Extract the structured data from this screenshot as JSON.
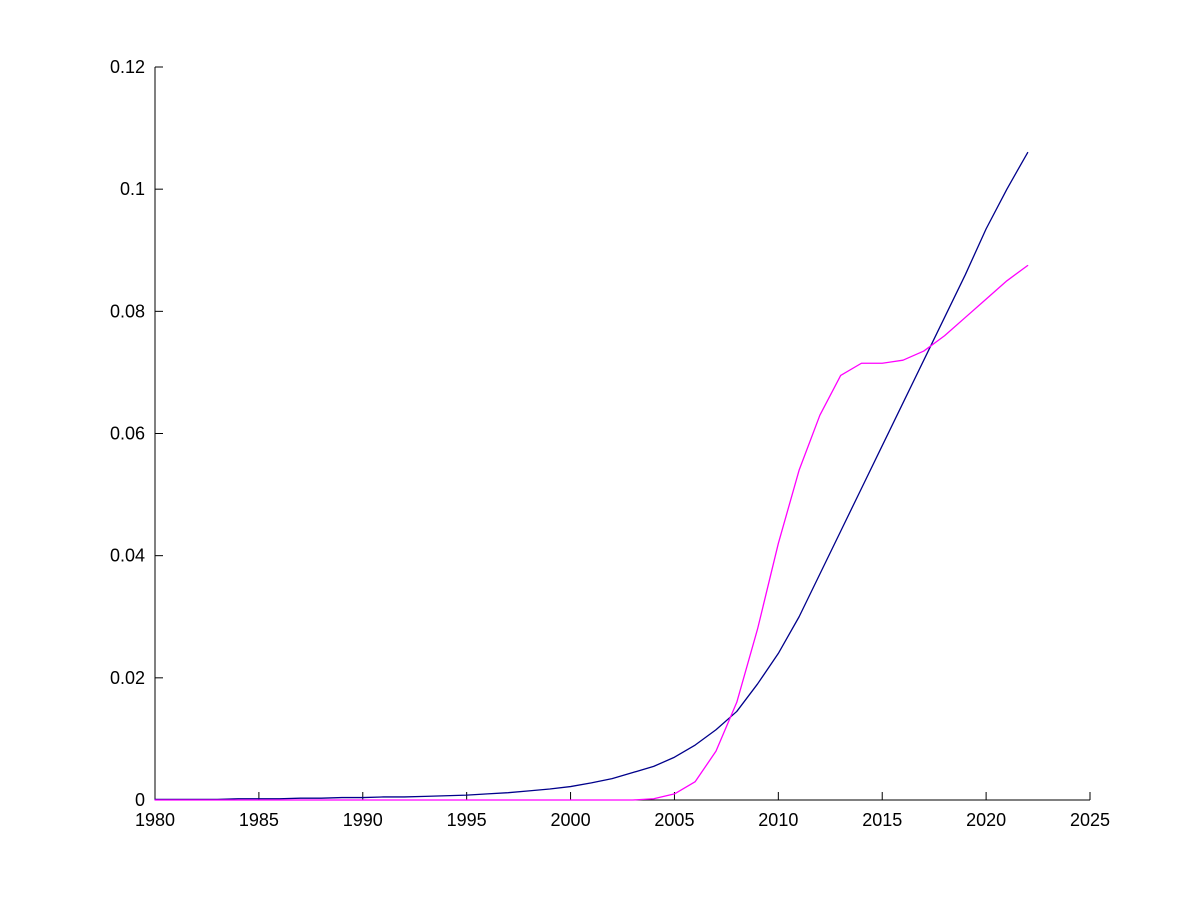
{
  "chart_data": {
    "type": "line",
    "title": "",
    "xlabel": "",
    "ylabel": "",
    "xlim": [
      1980,
      2025
    ],
    "ylim": [
      0,
      0.12
    ],
    "x_ticks": [
      1980,
      1985,
      1990,
      1995,
      2000,
      2005,
      2010,
      2015,
      2020,
      2025
    ],
    "x_tick_labels": [
      "1980",
      "1985",
      "1990",
      "1995",
      "2000",
      "2005",
      "2010",
      "2015",
      "2020",
      "2025"
    ],
    "y_ticks": [
      0,
      0.02,
      0.04,
      0.06,
      0.08,
      0.1,
      0.12
    ],
    "y_tick_labels": [
      "0",
      "0.02",
      "0.04",
      "0.06",
      "0.08",
      "0.1",
      "0.12"
    ],
    "grid": false,
    "legend": null,
    "x": [
      1980,
      1981,
      1982,
      1983,
      1984,
      1985,
      1986,
      1987,
      1988,
      1989,
      1990,
      1991,
      1992,
      1993,
      1994,
      1995,
      1996,
      1997,
      1998,
      1999,
      2000,
      2001,
      2002,
      2003,
      2004,
      2005,
      2006,
      2007,
      2008,
      2009,
      2010,
      2011,
      2012,
      2013,
      2014,
      2015,
      2016,
      2017,
      2018,
      2019,
      2020,
      2021,
      2022
    ],
    "series": [
      {
        "name": "dark-blue-line",
        "color": "#00008B",
        "values": [
          0.0001,
          0.0001,
          0.0001,
          0.0001,
          0.0002,
          0.0002,
          0.0002,
          0.0003,
          0.0003,
          0.0004,
          0.0004,
          0.0005,
          0.0005,
          0.0006,
          0.0007,
          0.0008,
          0.001,
          0.0012,
          0.0015,
          0.0018,
          0.0022,
          0.0028,
          0.0035,
          0.0045,
          0.0055,
          0.007,
          0.009,
          0.0115,
          0.0145,
          0.019,
          0.024,
          0.03,
          0.037,
          0.044,
          0.051,
          0.058,
          0.065,
          0.072,
          0.079,
          0.086,
          0.0935,
          0.1,
          0.106
        ]
      },
      {
        "name": "magenta-line",
        "color": "#FF00FF",
        "values": [
          0,
          0,
          0,
          0,
          0,
          0,
          0,
          0,
          0,
          0,
          0,
          0,
          0,
          0,
          0,
          0,
          0,
          0,
          0,
          0,
          0,
          0,
          0,
          0,
          0.0002,
          0.001,
          0.003,
          0.008,
          0.016,
          0.028,
          0.042,
          0.054,
          0.063,
          0.0695,
          0.0715,
          0.0715,
          0.072,
          0.0735,
          0.076,
          0.079,
          0.082,
          0.085,
          0.0875
        ]
      }
    ],
    "colors": {
      "axis": "#000000",
      "background": "#ffffff"
    }
  }
}
